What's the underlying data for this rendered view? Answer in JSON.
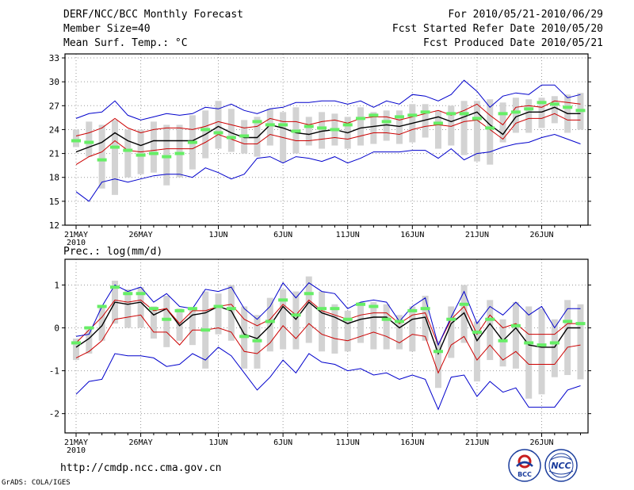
{
  "header": {
    "title": "DERF/NCC/BCC Monthly Forecast",
    "member_size": "Member Size=40",
    "variable_temp": "Mean Surf. Temp.: °C",
    "period": "For 2010/05/21-2010/06/29",
    "fcst_started": "Fcst Started Refer Date 2010/05/20",
    "fcst_produced": "Fcst Produced Date 2010/05/21"
  },
  "footer": {
    "url": "http://cmdp.ncc.cma.gov.cn",
    "credit": "GrADS: COLA/IGES",
    "logo_bcc": "BCC",
    "logo_ncc": "NCC"
  },
  "colors": {
    "blue": "#0000cc",
    "red": "#cc0000",
    "black": "#000000",
    "green": "#66ee66",
    "box": "#d3d3d3",
    "grid": "#999999"
  },
  "chart_data": [
    {
      "type": "line",
      "title": "Mean Surf. Temp.: °C",
      "x": [
        "5/21",
        "5/22",
        "5/23",
        "5/24",
        "5/25",
        "5/26",
        "5/27",
        "5/28",
        "5/29",
        "5/30",
        "5/31",
        "6/1",
        "6/2",
        "6/3",
        "6/4",
        "6/5",
        "6/6",
        "6/7",
        "6/8",
        "6/9",
        "6/10",
        "6/11",
        "6/12",
        "6/13",
        "6/14",
        "6/15",
        "6/16",
        "6/17",
        "6/18",
        "6/19",
        "6/20",
        "6/21",
        "6/22",
        "6/23",
        "6/24",
        "6/25",
        "6/26",
        "6/27",
        "6/28",
        "6/29"
      ],
      "xticks": [
        {
          "index": 0,
          "label": "21MAY",
          "sub": "2010"
        },
        {
          "index": 5,
          "label": "26MAY"
        },
        {
          "index": 11,
          "label": "1JUN"
        },
        {
          "index": 16,
          "label": "6JUN"
        },
        {
          "index": 21,
          "label": "11JUN"
        },
        {
          "index": 26,
          "label": "16JUN"
        },
        {
          "index": 31,
          "label": "21JUN"
        },
        {
          "index": 36,
          "label": "26JUN"
        }
      ],
      "yticks": [
        "12",
        "15",
        "18",
        "21",
        "24",
        "27",
        "30",
        "33"
      ],
      "ylim": [
        12,
        33.5
      ],
      "series": [
        {
          "name": "max",
          "color": "#0000cc",
          "values": [
            25.4,
            26.0,
            26.2,
            27.6,
            25.8,
            25.2,
            25.6,
            26.0,
            25.8,
            26.0,
            26.8,
            26.6,
            27.2,
            26.4,
            26.0,
            26.6,
            26.8,
            27.4,
            27.4,
            27.6,
            27.6,
            27.2,
            27.6,
            26.8,
            27.6,
            27.2,
            28.4,
            28.2,
            27.6,
            28.4,
            30.2,
            28.8,
            26.8,
            28.2,
            28.6,
            28.4,
            29.6,
            29.6,
            28.0,
            28.4
          ]
        },
        {
          "name": "upper",
          "color": "#cc0000",
          "values": [
            23.2,
            23.6,
            24.2,
            25.4,
            24.2,
            23.6,
            24.0,
            24.2,
            24.2,
            24.0,
            24.4,
            25.0,
            24.6,
            24.2,
            24.4,
            25.4,
            25.0,
            25.0,
            24.6,
            25.0,
            25.2,
            24.8,
            25.4,
            25.6,
            25.6,
            25.2,
            25.6,
            26.0,
            26.4,
            25.8,
            26.4,
            27.2,
            25.8,
            24.6,
            26.8,
            27.0,
            26.8,
            27.6,
            27.4,
            27.2
          ]
        },
        {
          "name": "mean",
          "color": "#000000",
          "values": [
            21.2,
            21.8,
            22.4,
            23.6,
            22.6,
            22.0,
            22.6,
            22.6,
            22.6,
            22.6,
            23.4,
            24.4,
            23.6,
            23.0,
            23.0,
            24.6,
            24.2,
            23.6,
            23.4,
            23.8,
            24.0,
            23.6,
            24.2,
            24.4,
            24.6,
            24.4,
            24.8,
            25.2,
            25.6,
            25.0,
            25.6,
            26.2,
            24.6,
            23.4,
            25.6,
            26.2,
            26.2,
            26.8,
            26.0,
            26.0
          ]
        },
        {
          "name": "lower",
          "color": "#cc0000",
          "values": [
            19.6,
            20.6,
            21.2,
            22.6,
            21.4,
            21.2,
            21.4,
            21.6,
            21.6,
            21.6,
            22.4,
            23.4,
            22.8,
            22.2,
            22.2,
            23.4,
            23.0,
            22.6,
            22.6,
            22.8,
            23.0,
            22.8,
            23.2,
            23.6,
            23.6,
            23.4,
            24.0,
            24.4,
            24.6,
            24.4,
            25.0,
            25.2,
            24.0,
            22.8,
            24.8,
            25.4,
            25.4,
            26.0,
            25.2,
            25.2
          ]
        },
        {
          "name": "min",
          "color": "#0000cc",
          "values": [
            16.2,
            15.0,
            17.4,
            17.8,
            17.4,
            17.8,
            18.2,
            18.4,
            18.4,
            18.0,
            19.2,
            18.6,
            17.8,
            18.4,
            20.4,
            20.6,
            19.8,
            20.6,
            20.4,
            20.0,
            20.6,
            19.8,
            20.4,
            21.2,
            21.2,
            21.2,
            21.4,
            21.4,
            20.4,
            21.6,
            20.2,
            21.0,
            21.2,
            21.8,
            22.2,
            22.4,
            23.0,
            23.4,
            22.8,
            22.2
          ]
        }
      ],
      "box_low": [
        21.8,
        20.6,
        16.6,
        15.8,
        18.0,
        18.4,
        18.6,
        17.0,
        18.0,
        19.0,
        20.4,
        21.6,
        21.2,
        21.0,
        20.6,
        22.0,
        20.0,
        21.0,
        22.0,
        21.6,
        22.0,
        21.6,
        22.0,
        22.2,
        22.6,
        22.2,
        22.4,
        23.0,
        21.6,
        22.0,
        20.8,
        20.0,
        19.6,
        22.4,
        23.6,
        23.6,
        24.2,
        24.8,
        23.6,
        24.0
      ],
      "box_high": [
        24.0,
        25.0,
        24.6,
        25.2,
        24.0,
        24.0,
        25.0,
        24.6,
        24.6,
        25.8,
        26.4,
        27.6,
        26.6,
        25.2,
        25.6,
        26.6,
        26.2,
        26.8,
        25.6,
        26.2,
        26.0,
        25.6,
        26.8,
        26.2,
        26.4,
        26.4,
        27.2,
        27.2,
        26.4,
        27.0,
        27.6,
        27.6,
        27.8,
        27.4,
        28.0,
        27.8,
        28.0,
        28.2,
        28.4,
        28.6
      ],
      "markers": [
        22.6,
        22.4,
        20.2,
        21.8,
        21.4,
        20.8,
        21.0,
        20.6,
        21.0,
        22.4,
        24.0,
        23.6,
        23.0,
        23.2,
        25.0,
        24.6,
        24.6,
        23.8,
        24.4,
        24.2,
        24.0,
        24.6,
        25.4,
        25.8,
        25.0,
        25.6,
        25.8,
        26.2,
        24.8,
        26.0,
        26.0,
        25.4,
        24.2,
        26.0,
        26.2,
        26.6,
        27.4,
        27.2,
        26.8,
        26.4
      ]
    },
    {
      "type": "line",
      "title": "Prec.: log(mm/d)",
      "x": [
        "5/21",
        "5/22",
        "5/23",
        "5/24",
        "5/25",
        "5/26",
        "5/27",
        "5/28",
        "5/29",
        "5/30",
        "5/31",
        "6/1",
        "6/2",
        "6/3",
        "6/4",
        "6/5",
        "6/6",
        "6/7",
        "6/8",
        "6/9",
        "6/10",
        "6/11",
        "6/12",
        "6/13",
        "6/14",
        "6/15",
        "6/16",
        "6/17",
        "6/18",
        "6/19",
        "6/20",
        "6/21",
        "6/22",
        "6/23",
        "6/24",
        "6/25",
        "6/26",
        "6/27",
        "6/28",
        "6/29"
      ],
      "xticks": [
        {
          "index": 0,
          "label": "21MAY",
          "sub": "2010"
        },
        {
          "index": 5,
          "label": "26MAY"
        },
        {
          "index": 11,
          "label": "1JUN"
        },
        {
          "index": 16,
          "label": "6JUN"
        },
        {
          "index": 21,
          "label": "11JUN"
        },
        {
          "index": 26,
          "label": "16JUN"
        },
        {
          "index": 31,
          "label": "21JUN"
        },
        {
          "index": 36,
          "label": "26JUN"
        }
      ],
      "yticks": [
        "-2",
        "-1",
        "0",
        "1"
      ],
      "ylim": [
        -2.45,
        1.6
      ],
      "series": [
        {
          "name": "max",
          "color": "#0000cc",
          "values": [
            -0.2,
            -0.15,
            0.5,
            1.0,
            0.85,
            0.95,
            0.6,
            0.8,
            0.5,
            0.45,
            0.9,
            0.85,
            0.95,
            0.45,
            0.2,
            0.5,
            1.05,
            0.7,
            1.05,
            0.85,
            0.8,
            0.45,
            0.6,
            0.65,
            0.6,
            0.15,
            0.5,
            0.7,
            -0.4,
            0.25,
            0.85,
            0.1,
            0.5,
            0.3,
            0.6,
            0.3,
            0.5,
            0.0,
            0.45,
            0.45
          ]
        },
        {
          "name": "upper",
          "color": "#cc0000",
          "values": [
            -0.35,
            -0.05,
            0.25,
            0.65,
            0.6,
            0.65,
            0.4,
            0.45,
            0.1,
            0.4,
            0.4,
            0.5,
            0.55,
            0.2,
            0.05,
            0.2,
            0.55,
            0.3,
            0.65,
            0.4,
            0.3,
            0.2,
            0.3,
            0.35,
            0.35,
            0.1,
            0.3,
            0.35,
            -0.4,
            0.2,
            0.5,
            -0.15,
            0.3,
            0.0,
            0.1,
            -0.15,
            -0.15,
            -0.15,
            0.1,
            0.1
          ]
        },
        {
          "name": "mean",
          "color": "#000000",
          "values": [
            -0.45,
            -0.25,
            0.05,
            0.6,
            0.55,
            0.6,
            0.3,
            0.45,
            0.05,
            0.3,
            0.35,
            0.5,
            0.4,
            -0.15,
            -0.25,
            0.05,
            0.5,
            0.2,
            0.6,
            0.35,
            0.25,
            0.1,
            0.2,
            0.25,
            0.25,
            0.0,
            0.2,
            0.25,
            -0.6,
            0.1,
            0.35,
            -0.3,
            0.1,
            -0.3,
            0.0,
            -0.4,
            -0.45,
            -0.45,
            0.0,
            0.0
          ]
        },
        {
          "name": "lower",
          "color": "#cc0000",
          "values": [
            -0.7,
            -0.55,
            -0.3,
            0.2,
            0.25,
            0.3,
            -0.1,
            -0.1,
            -0.4,
            -0.05,
            -0.05,
            0.0,
            -0.1,
            -0.55,
            -0.6,
            -0.35,
            0.05,
            -0.25,
            0.1,
            -0.15,
            -0.25,
            -0.3,
            -0.2,
            -0.1,
            -0.2,
            -0.35,
            -0.15,
            -0.2,
            -1.05,
            -0.4,
            -0.2,
            -0.75,
            -0.4,
            -0.75,
            -0.55,
            -0.85,
            -0.85,
            -0.85,
            -0.45,
            -0.4
          ]
        },
        {
          "name": "min",
          "color": "#0000cc",
          "values": [
            -1.55,
            -1.25,
            -1.2,
            -0.6,
            -0.65,
            -0.65,
            -0.7,
            -0.9,
            -0.85,
            -0.6,
            -0.75,
            -0.45,
            -0.65,
            -1.05,
            -1.45,
            -1.15,
            -0.75,
            -1.05,
            -0.6,
            -0.8,
            -0.85,
            -1.0,
            -0.95,
            -1.1,
            -1.05,
            -1.2,
            -1.1,
            -1.2,
            -1.9,
            -1.15,
            -1.1,
            -1.6,
            -1.25,
            -1.5,
            -1.4,
            -1.85,
            -1.85,
            -1.85,
            -1.45,
            -1.35
          ]
        },
        {
          "name": "box_low",
          "color": "#d3d3d3",
          "values": [
            -0.75,
            -0.6,
            -0.3,
            0.1,
            0.0,
            0.0,
            -0.25,
            -0.45,
            -0.3,
            -0.4,
            -0.95,
            -0.15,
            -0.3,
            -0.95,
            -0.95,
            -0.55,
            -0.5,
            -0.5,
            -0.35,
            -0.55,
            -0.6,
            -0.55,
            -0.35,
            -0.5,
            -0.5,
            -0.5,
            -0.55,
            -0.3,
            -1.4,
            -0.7,
            -0.35,
            -1.25,
            -0.75,
            -0.9,
            -0.95,
            -1.65,
            -1.55,
            -1.15,
            -1.1,
            -1.2
          ]
        },
        {
          "name": "box_high",
          "color": "#d3d3d3",
          "values": [
            -0.25,
            -0.05,
            0.5,
            1.1,
            0.9,
            0.95,
            0.5,
            0.75,
            0.45,
            0.45,
            0.85,
            0.8,
            1.0,
            0.5,
            0.3,
            0.7,
            0.9,
            0.85,
            1.2,
            0.85,
            0.55,
            0.4,
            0.6,
            0.6,
            0.55,
            0.3,
            0.5,
            0.75,
            -0.3,
            0.5,
            1.0,
            0.15,
            0.65,
            0.2,
            0.6,
            0.5,
            0.45,
            0.2,
            0.65,
            0.55
          ]
        },
        {
          "name": "markers",
          "color": "#66ee66",
          "values": [
            -0.35,
            0.0,
            0.5,
            0.95,
            0.8,
            0.8,
            0.45,
            0.2,
            0.4,
            0.45,
            -0.05,
            0.5,
            0.45,
            -0.2,
            -0.3,
            0.15,
            0.65,
            0.3,
            0.8,
            0.45,
            0.45,
            0.2,
            0.55,
            0.5,
            0.2,
            0.15,
            0.4,
            0.45,
            -0.55,
            0.2,
            0.55,
            -0.1,
            0.2,
            -0.3,
            0.05,
            -0.35,
            -0.4,
            -0.35,
            0.15,
            0.1
          ]
        }
      ]
    }
  ]
}
